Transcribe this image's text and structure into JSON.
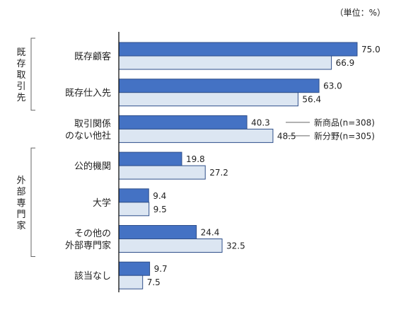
{
  "unit_note": "（単位：%）",
  "chart_data": {
    "type": "bar",
    "orientation": "horizontal",
    "categories": [
      "既存顧客",
      "既存仕入先",
      "取引関係\nのない他社",
      "公的機関",
      "大学",
      "その他の\n外部専門家",
      "該当なし"
    ],
    "series": [
      {
        "name": "新商品(n=308)",
        "values": [
          75.0,
          63.0,
          40.3,
          19.8,
          9.4,
          24.4,
          9.7
        ],
        "color": "#4472c4"
      },
      {
        "name": "新分野(n=305)",
        "values": [
          66.9,
          56.4,
          48.5,
          27.2,
          9.5,
          32.5,
          7.5
        ],
        "color": "#dce6f2"
      }
    ],
    "groups": [
      {
        "label": "既\n存\n取\n引\n先",
        "from": 0,
        "to": 1
      },
      {
        "label": "外\n部\n専\n門\n家",
        "from": 3,
        "to": 5
      }
    ],
    "xlim": [
      0,
      80
    ],
    "legend_placement": "right, beside 取引関係のない他社",
    "grid": false
  }
}
